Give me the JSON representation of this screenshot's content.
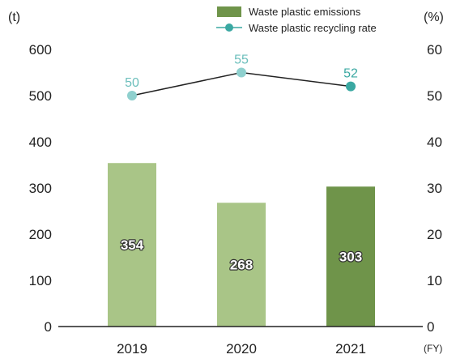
{
  "chart_data": {
    "type": "bar",
    "categories": [
      "2019",
      "2020",
      "2021"
    ],
    "x_unit": "(FY)",
    "y_left": {
      "unit": "(t)",
      "range": [
        0,
        600
      ],
      "ticks": [
        "0",
        "100",
        "200",
        "300",
        "400",
        "500",
        "600"
      ]
    },
    "y_right": {
      "unit": "(%)",
      "range": [
        0,
        60
      ],
      "ticks": [
        "0",
        "10",
        "20",
        "30",
        "40",
        "50",
        "60"
      ]
    },
    "series": [
      {
        "name": "Waste plastic emissions",
        "type": "bar",
        "axis": "left",
        "values": [
          354,
          268,
          303
        ],
        "labels": [
          "354",
          "268",
          "303"
        ],
        "colors": [
          "#a9c587",
          "#a9c587",
          "#6f944a"
        ]
      },
      {
        "name": "Waste plastic recycling rate",
        "type": "line",
        "axis": "right",
        "values": [
          50,
          55,
          52
        ],
        "labels": [
          "50",
          "55",
          "52"
        ],
        "point_colors": [
          "#8fd0ce",
          "#8fd0ce",
          "#3aa8a2"
        ],
        "label_colors": [
          "#6cbfbc",
          "#6cbfbc",
          "#3aa8a2"
        ],
        "line_color": "#222222"
      }
    ],
    "legend": {
      "position": "top-right",
      "items": [
        {
          "label": "Waste plastic emissions",
          "symbol": "bar",
          "color": "#6f944a"
        },
        {
          "label": "Waste plastic recycling rate",
          "symbol": "line-marker",
          "color": "#3aa8a2"
        }
      ]
    },
    "grid": false
  }
}
